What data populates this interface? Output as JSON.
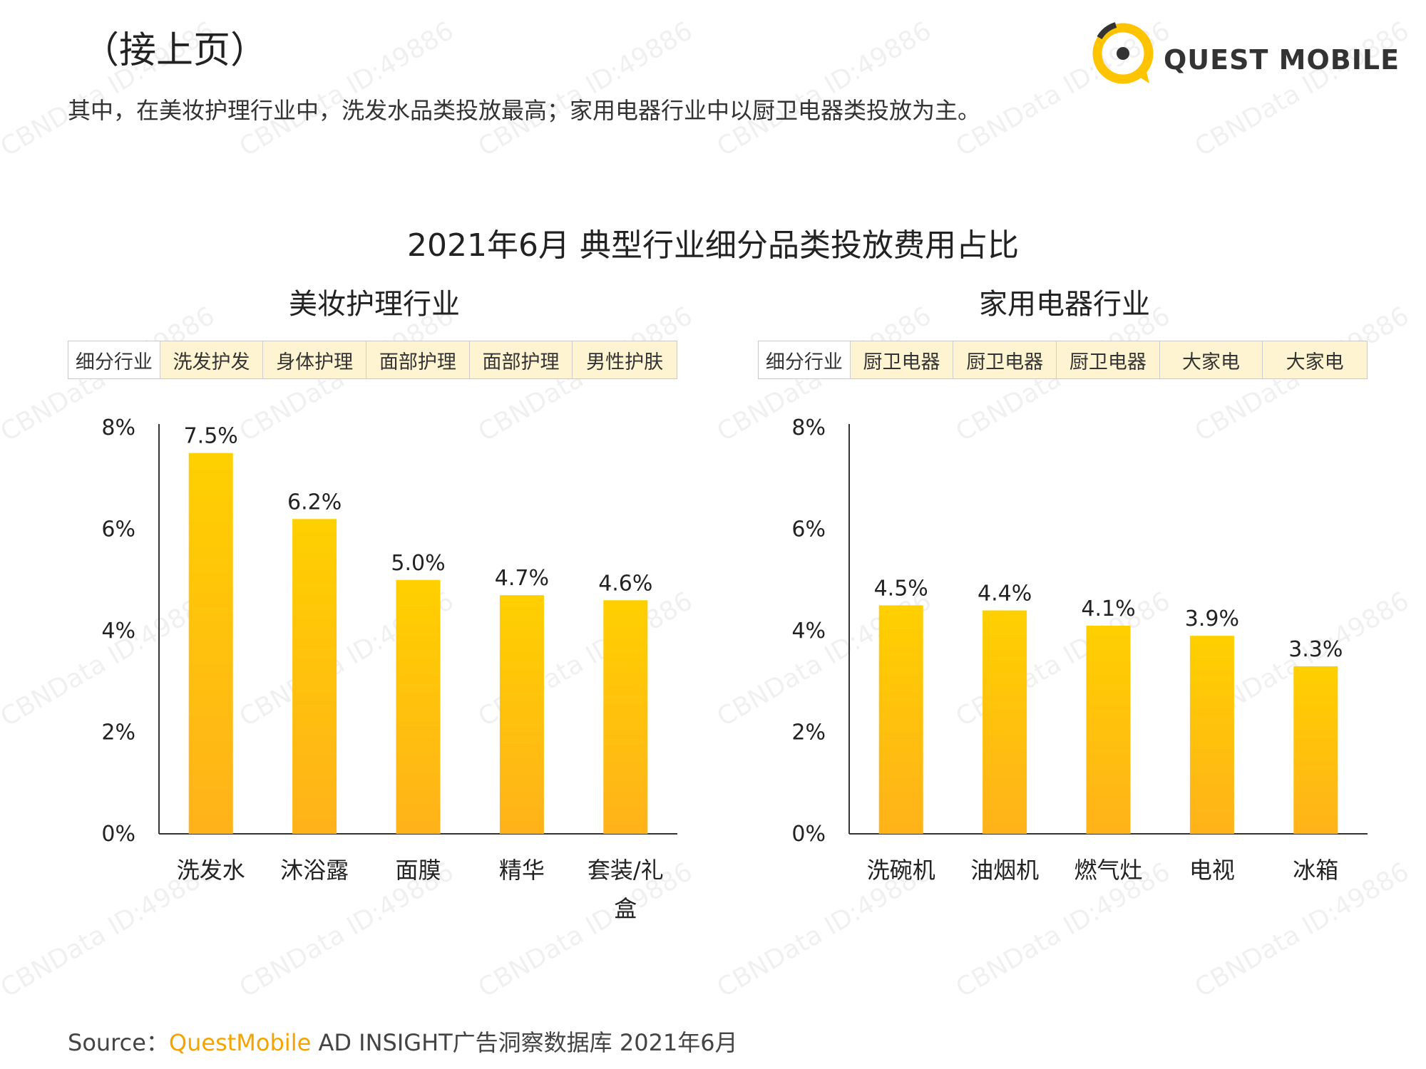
{
  "header": {
    "title": "（接上页）",
    "subtitle": "其中，在美妆护理行业中，洗发水品类投放最高；家用电器行业中以厨卫电器类投放为主。",
    "logo_text": "QUEST MOBILE"
  },
  "main_title": "2021年6月 典型行业细分品类投放费用占比",
  "watermark_text": "CBNData ID:49886",
  "colors": {
    "bar_top": "#ffd000",
    "bar_bottom": "#ffb21a",
    "accent": "#f3a400",
    "cat_bg": "#fff4d2"
  },
  "panels": [
    {
      "title": "美妆护理行业",
      "category_header": "细分行业",
      "categories": [
        "洗发护发",
        "身体护理",
        "面部护理",
        "面部护理",
        "男性护肤"
      ]
    },
    {
      "title": "家用电器行业",
      "category_header": "细分行业",
      "categories": [
        "厨卫电器",
        "厨卫电器",
        "厨卫电器",
        "大家电",
        "大家电"
      ]
    }
  ],
  "chart_data": [
    {
      "type": "bar",
      "title": "美妆护理行业",
      "categories": [
        "洗发水",
        "沐浴露",
        "面膜",
        "精华",
        "套装/礼盒"
      ],
      "values": [
        7.5,
        6.2,
        5.0,
        4.7,
        4.6
      ],
      "value_labels": [
        "7.5%",
        "6.2%",
        "5.0%",
        "4.7%",
        "4.6%"
      ],
      "y_ticks": [
        "0%",
        "2%",
        "4%",
        "6%",
        "8%"
      ],
      "ylim": [
        0,
        8
      ],
      "grid": false
    },
    {
      "type": "bar",
      "title": "家用电器行业",
      "categories": [
        "洗碗机",
        "油烟机",
        "燃气灶",
        "电视",
        "冰箱"
      ],
      "values": [
        4.5,
        4.4,
        4.1,
        3.9,
        3.3
      ],
      "value_labels": [
        "4.5%",
        "4.4%",
        "4.1%",
        "3.9%",
        "3.3%"
      ],
      "y_ticks": [
        "0%",
        "2%",
        "4%",
        "6%",
        "8%"
      ],
      "ylim": [
        0,
        8
      ],
      "grid": false
    }
  ],
  "source": {
    "prefix": "Source：",
    "brand": "QuestMobile",
    "rest": " AD INSIGHT广告洞察数据库 2021年6月"
  }
}
